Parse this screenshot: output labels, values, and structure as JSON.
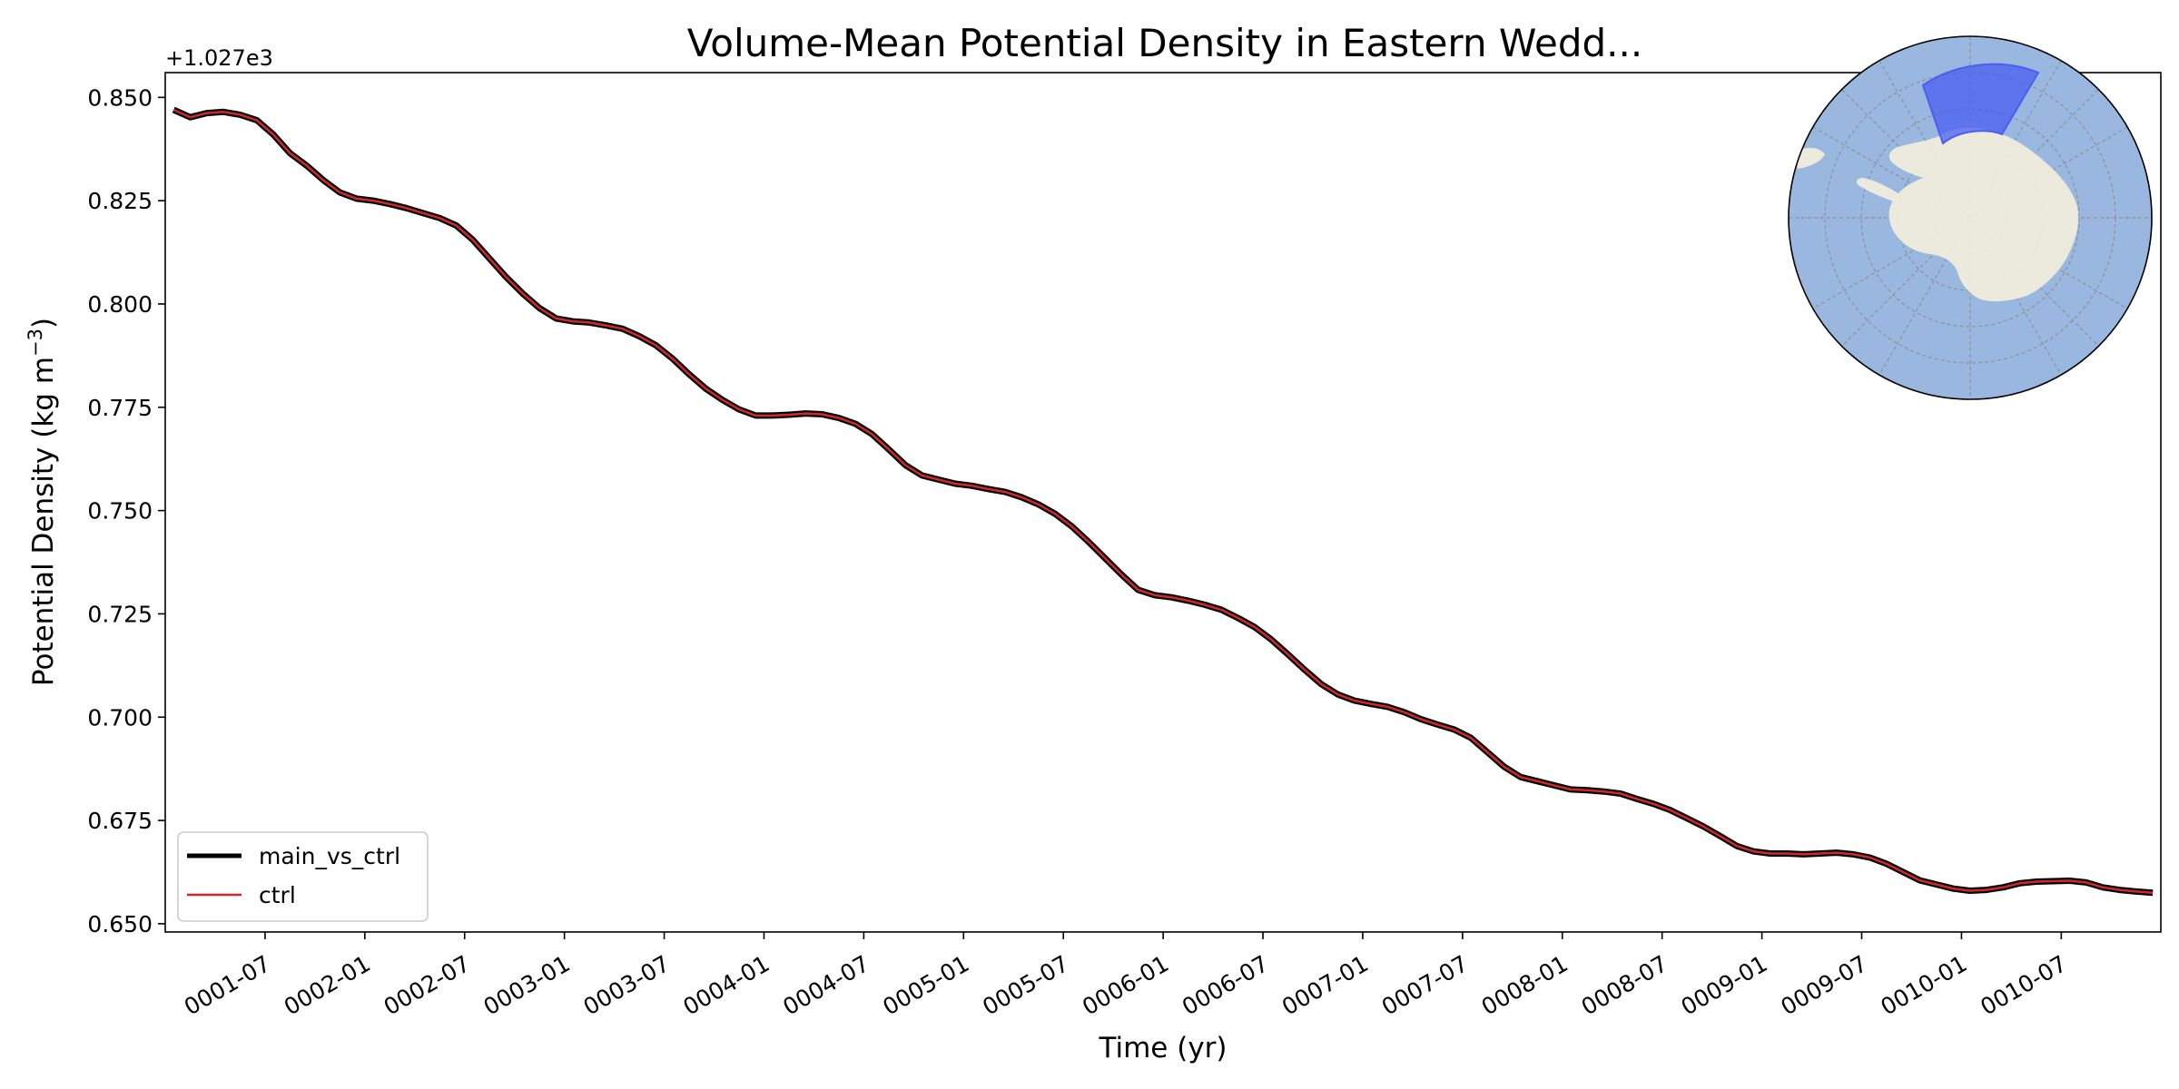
{
  "chart_data": {
    "type": "line",
    "title": "Volume-Mean Potential Density in Eastern Wedd...",
    "xlabel": "Time (yr)",
    "ylabel": "Potential Density (kg m",
    "ylabel_superscript": "−3",
    "ylabel_suffix": ")",
    "y_offset_text": "+1.027e3",
    "y_offset_value": 1027,
    "xlim": [
      "0001-01-01",
      "0010-12-31"
    ],
    "ylim": [
      0.648,
      0.856
    ],
    "yticks": [
      0.65,
      0.675,
      0.7,
      0.725,
      0.75,
      0.775,
      0.8,
      0.825,
      0.85
    ],
    "ytick_labels": [
      "0.650",
      "0.675",
      "0.700",
      "0.725",
      "0.750",
      "0.775",
      "0.800",
      "0.825",
      "0.850"
    ],
    "xticks": [
      "0001-07",
      "0002-01",
      "0002-07",
      "0003-01",
      "0003-07",
      "0004-01",
      "0004-07",
      "0005-01",
      "0005-07",
      "0006-01",
      "0006-07",
      "0007-01",
      "0007-07",
      "0008-01",
      "0008-07",
      "0009-01",
      "0009-07",
      "0010-01",
      "0010-07"
    ],
    "grid": false,
    "legend_location": "lower-left",
    "x": [
      "0001-01",
      "0001-02",
      "0001-03",
      "0001-04",
      "0001-05",
      "0001-06",
      "0001-07",
      "0001-08",
      "0001-09",
      "0001-10",
      "0001-11",
      "0001-12",
      "0002-01",
      "0002-02",
      "0002-03",
      "0002-04",
      "0002-05",
      "0002-06",
      "0002-07",
      "0002-08",
      "0002-09",
      "0002-10",
      "0002-11",
      "0002-12",
      "0003-01",
      "0003-02",
      "0003-03",
      "0003-04",
      "0003-05",
      "0003-06",
      "0003-07",
      "0003-08",
      "0003-09",
      "0003-10",
      "0003-11",
      "0003-12",
      "0004-01",
      "0004-02",
      "0004-03",
      "0004-04",
      "0004-05",
      "0004-06",
      "0004-07",
      "0004-08",
      "0004-09",
      "0004-10",
      "0004-11",
      "0004-12",
      "0005-01",
      "0005-02",
      "0005-03",
      "0005-04",
      "0005-05",
      "0005-06",
      "0005-07",
      "0005-08",
      "0005-09",
      "0005-10",
      "0005-11",
      "0005-12",
      "0006-01",
      "0006-02",
      "0006-03",
      "0006-04",
      "0006-05",
      "0006-06",
      "0006-07",
      "0006-08",
      "0006-09",
      "0006-10",
      "0006-11",
      "0006-12",
      "0007-01",
      "0007-02",
      "0007-03",
      "0007-04",
      "0007-05",
      "0007-06",
      "0007-07",
      "0007-08",
      "0007-09",
      "0007-10",
      "0007-11",
      "0007-12",
      "0008-01",
      "0008-02",
      "0008-03",
      "0008-04",
      "0008-05",
      "0008-06",
      "0008-07",
      "0008-08",
      "0008-09",
      "0008-10",
      "0008-11",
      "0008-12",
      "0009-01",
      "0009-02",
      "0009-03",
      "0009-04",
      "0009-05",
      "0009-06",
      "0009-07",
      "0009-08",
      "0009-09",
      "0009-10",
      "0009-11",
      "0009-12",
      "0010-01",
      "0010-02",
      "0010-03",
      "0010-04",
      "0010-05",
      "0010-06",
      "0010-07",
      "0010-08",
      "0010-09",
      "0010-10",
      "0010-11",
      "0010-12"
    ],
    "series": [
      {
        "name": "main_vs_ctrl",
        "color": "#000000",
        "values": [
          0.847,
          0.8452,
          0.8462,
          0.8465,
          0.8458,
          0.8445,
          0.841,
          0.8365,
          0.8335,
          0.83,
          0.827,
          0.8255,
          0.825,
          0.8242,
          0.8232,
          0.822,
          0.8208,
          0.819,
          0.8155,
          0.811,
          0.8065,
          0.8025,
          0.799,
          0.7965,
          0.7958,
          0.7955,
          0.7948,
          0.794,
          0.7922,
          0.79,
          0.7868,
          0.783,
          0.7795,
          0.7768,
          0.7745,
          0.773,
          0.773,
          0.7732,
          0.7735,
          0.7733,
          0.7724,
          0.771,
          0.7685,
          0.7648,
          0.761,
          0.7585,
          0.7575,
          0.7565,
          0.756,
          0.7552,
          0.7545,
          0.7532,
          0.7515,
          0.7492,
          0.7462,
          0.7425,
          0.7385,
          0.7345,
          0.7308,
          0.7295,
          0.729,
          0.7282,
          0.7272,
          0.726,
          0.724,
          0.7218,
          0.7188,
          0.7152,
          0.7115,
          0.708,
          0.7055,
          0.704,
          0.7032,
          0.7025,
          0.7012,
          0.6995,
          0.6982,
          0.697,
          0.695,
          0.6915,
          0.688,
          0.6855,
          0.6845,
          0.6835,
          0.6825,
          0.6823,
          0.682,
          0.6815,
          0.6802,
          0.679,
          0.6775,
          0.6755,
          0.6735,
          0.6712,
          0.6688,
          0.6675,
          0.667,
          0.667,
          0.6668,
          0.667,
          0.6672,
          0.6668,
          0.666,
          0.6645,
          0.6625,
          0.6605,
          0.6595,
          0.6585,
          0.658,
          0.6582,
          0.6588,
          0.6598,
          0.6602,
          0.6603,
          0.6604,
          0.66,
          0.6588,
          0.6582,
          0.6578,
          0.6575
        ]
      },
      {
        "name": "ctrl",
        "color": "#d62728",
        "values": [
          0.847,
          0.8452,
          0.8462,
          0.8465,
          0.8458,
          0.8445,
          0.841,
          0.8365,
          0.8335,
          0.83,
          0.827,
          0.8255,
          0.825,
          0.8242,
          0.8232,
          0.822,
          0.8208,
          0.819,
          0.8155,
          0.811,
          0.8065,
          0.8025,
          0.799,
          0.7965,
          0.7958,
          0.7955,
          0.7948,
          0.794,
          0.7922,
          0.79,
          0.7868,
          0.783,
          0.7795,
          0.7768,
          0.7745,
          0.773,
          0.773,
          0.7732,
          0.7735,
          0.7733,
          0.7724,
          0.771,
          0.7685,
          0.7648,
          0.761,
          0.7585,
          0.7575,
          0.7565,
          0.756,
          0.7552,
          0.7545,
          0.7532,
          0.7515,
          0.7492,
          0.7462,
          0.7425,
          0.7385,
          0.7345,
          0.7308,
          0.7295,
          0.729,
          0.7282,
          0.7272,
          0.726,
          0.724,
          0.7218,
          0.7188,
          0.7152,
          0.7115,
          0.708,
          0.7055,
          0.704,
          0.7032,
          0.7025,
          0.7012,
          0.6995,
          0.6982,
          0.697,
          0.695,
          0.6915,
          0.688,
          0.6855,
          0.6845,
          0.6835,
          0.6825,
          0.6823,
          0.682,
          0.6815,
          0.6802,
          0.679,
          0.6775,
          0.6755,
          0.6735,
          0.6712,
          0.6688,
          0.6675,
          0.667,
          0.667,
          0.6668,
          0.667,
          0.6672,
          0.6668,
          0.666,
          0.6645,
          0.6625,
          0.6605,
          0.6595,
          0.6585,
          0.658,
          0.6582,
          0.6588,
          0.6598,
          0.6602,
          0.6603,
          0.6604,
          0.66,
          0.6588,
          0.6582,
          0.6578,
          0.6575
        ]
      }
    ],
    "inset_map": {
      "projection": "south-polar-stereographic",
      "ocean_color": "#9ab7e0",
      "land_color": "#efecdc",
      "region_color": "#4a5ef0"
    }
  }
}
